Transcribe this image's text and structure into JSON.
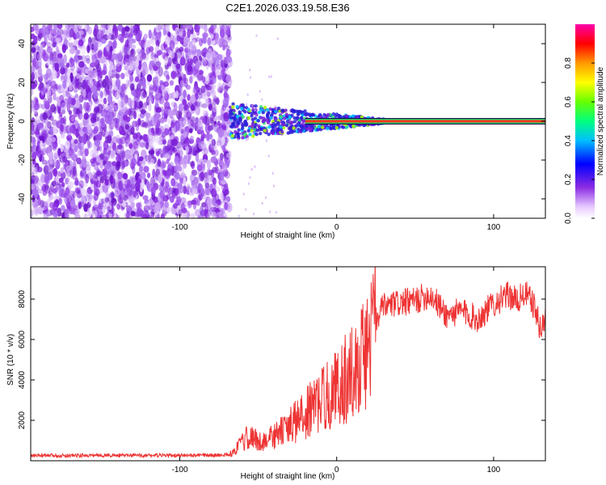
{
  "chart_data": [
    {
      "type": "heatmap",
      "title": "C2E1.2026.033.19.58.E36",
      "xlabel": "Height of straight line (km)",
      "ylabel": "Frequency (Hz)",
      "xlim": [
        -195,
        133
      ],
      "ylim": [
        -50,
        50
      ],
      "xticks": [
        -100,
        0,
        100
      ],
      "yticks": [
        -40,
        -20,
        0,
        20,
        40
      ],
      "colorbar": {
        "label": "Normalized spectral amplitude",
        "range": [
          0,
          1
        ],
        "ticks": [
          0.0,
          0.2,
          0.4,
          0.6,
          0.8
        ]
      },
      "features": {
        "noise_region_x": [
          -195,
          -68
        ],
        "transition_region_x": [
          -68,
          30
        ],
        "carrier_line_x": [
          -20,
          133
        ],
        "carrier_frequency_hz": 0
      }
    },
    {
      "type": "line",
      "title": "",
      "xlabel": "Height of straight line (km)",
      "ylabel": "SNR (10 * v/v)",
      "xlim": [
        -195,
        133
      ],
      "ylim": [
        0,
        9600
      ],
      "xticks": [
        -100,
        0,
        100
      ],
      "yticks": [
        2000,
        4000,
        6000,
        8000
      ],
      "series": [
        {
          "name": "SNR",
          "color": "#ee3333",
          "x": [
            -195,
            -150,
            -100,
            -80,
            -68,
            -60,
            -55,
            -50,
            -40,
            -30,
            -20,
            -10,
            0,
            10,
            20,
            25,
            30,
            40,
            50,
            55,
            60,
            70,
            80,
            90,
            100,
            110,
            115,
            120,
            125,
            130,
            133
          ],
          "y": [
            250,
            270,
            260,
            270,
            300,
            900,
            1300,
            900,
            1200,
            1700,
            2300,
            3000,
            3600,
            4400,
            5600,
            7000,
            7600,
            7800,
            7900,
            8100,
            8200,
            7200,
            7400,
            7000,
            7800,
            8200,
            7900,
            8300,
            7800,
            6500,
            7000
          ]
        }
      ]
    }
  ]
}
